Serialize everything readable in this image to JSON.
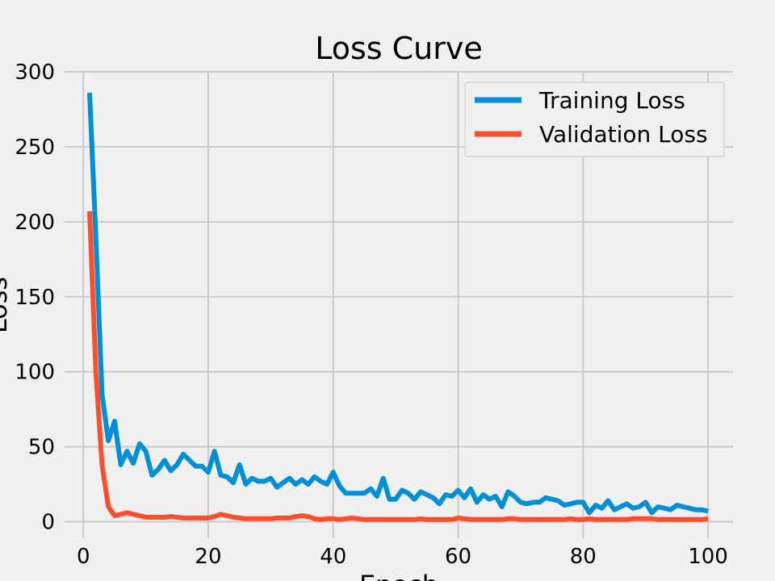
{
  "chart_data": {
    "type": "line",
    "title": "Loss Curve",
    "xlabel": "Epoch",
    "ylabel": "Loss",
    "xlim": [
      -3,
      104
    ],
    "ylim": [
      -11,
      300
    ],
    "x_ticks": [
      0,
      20,
      40,
      60,
      80,
      100
    ],
    "y_ticks": [
      0,
      50,
      100,
      150,
      200,
      250,
      300
    ],
    "grid": true,
    "legend_position": "top-right",
    "series": [
      {
        "name": "Training Loss",
        "color": "#008fd5",
        "x": [
          1,
          2,
          3,
          4,
          5,
          6,
          7,
          8,
          9,
          10,
          11,
          12,
          13,
          14,
          15,
          16,
          17,
          18,
          19,
          20,
          21,
          22,
          23,
          24,
          25,
          26,
          27,
          28,
          29,
          30,
          31,
          32,
          33,
          34,
          35,
          36,
          37,
          38,
          39,
          40,
          41,
          42,
          43,
          44,
          45,
          46,
          47,
          48,
          49,
          50,
          51,
          52,
          53,
          54,
          55,
          56,
          57,
          58,
          59,
          60,
          61,
          62,
          63,
          64,
          65,
          66,
          67,
          68,
          69,
          70,
          71,
          72,
          73,
          74,
          75,
          76,
          77,
          78,
          79,
          80,
          81,
          82,
          83,
          84,
          85,
          86,
          87,
          88,
          89,
          90,
          91,
          92,
          93,
          94,
          95,
          96,
          97,
          98,
          99,
          100
        ],
        "y": [
          286,
          190,
          85,
          54,
          67,
          38,
          47,
          39,
          52,
          47,
          31,
          35,
          41,
          34,
          38,
          45,
          41,
          37,
          37,
          33,
          47,
          31,
          30,
          26,
          38,
          25,
          29,
          27,
          27,
          29,
          23,
          26,
          29,
          25,
          28,
          25,
          30,
          27,
          25,
          33,
          24,
          19,
          19,
          19,
          19,
          22,
          17,
          29,
          15,
          15,
          21,
          19,
          15,
          20,
          18,
          16,
          12,
          18,
          17,
          21,
          16,
          22,
          13,
          18,
          15,
          17,
          10,
          20,
          17,
          13,
          12,
          13,
          13,
          16,
          15,
          14,
          11,
          12,
          13,
          13,
          6,
          11,
          9,
          14,
          8,
          10,
          12,
          9,
          10,
          13,
          6,
          10,
          9,
          8,
          11,
          10,
          9,
          8,
          8,
          7
        ]
      },
      {
        "name": "Validation Loss",
        "color": "#fc4f30",
        "x": [
          1,
          2,
          3,
          4,
          5,
          6,
          7,
          8,
          9,
          10,
          11,
          12,
          13,
          14,
          15,
          16,
          17,
          18,
          19,
          20,
          21,
          22,
          23,
          24,
          25,
          26,
          27,
          28,
          29,
          30,
          31,
          32,
          33,
          34,
          35,
          36,
          37,
          38,
          39,
          40,
          41,
          42,
          43,
          44,
          45,
          46,
          47,
          48,
          49,
          50,
          51,
          52,
          53,
          54,
          55,
          56,
          57,
          58,
          59,
          60,
          61,
          62,
          63,
          64,
          65,
          66,
          67,
          68,
          69,
          70,
          71,
          72,
          73,
          74,
          75,
          76,
          77,
          78,
          79,
          80,
          81,
          82,
          83,
          84,
          85,
          86,
          87,
          88,
          89,
          90,
          91,
          92,
          93,
          94,
          95,
          96,
          97,
          98,
          99,
          100
        ],
        "y": [
          207,
          100,
          38,
          10,
          4,
          5,
          6,
          5,
          4,
          3,
          3,
          3,
          3,
          3.5,
          3,
          2.5,
          2.5,
          2.5,
          2.5,
          2.5,
          3.5,
          5,
          4,
          3,
          2.5,
          2,
          2,
          2,
          2,
          2,
          2.5,
          2.5,
          2.5,
          3.5,
          4,
          3.5,
          2,
          1.5,
          2,
          2,
          1.5,
          2,
          2.5,
          2,
          1.5,
          1.5,
          1.5,
          1.5,
          1.5,
          1.5,
          1.5,
          1.5,
          1.5,
          2,
          1.5,
          1.5,
          1.5,
          1.5,
          1.5,
          2.5,
          2,
          1.5,
          1.5,
          1.5,
          1.5,
          1.5,
          1.5,
          2,
          2,
          1.5,
          1.5,
          1.5,
          1.5,
          1.5,
          1.5,
          1.5,
          1.5,
          2,
          1.5,
          1.5,
          2,
          1.5,
          1.5,
          1.5,
          1.5,
          1.5,
          1.5,
          2,
          2,
          2,
          2,
          1.5,
          1.5,
          1.5,
          1.5,
          1.5,
          1.5,
          1.5,
          1.5,
          2
        ]
      }
    ]
  }
}
